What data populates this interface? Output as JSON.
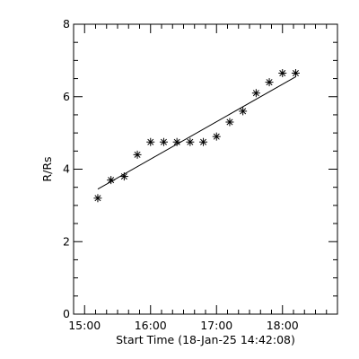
{
  "chart_data": {
    "type": "scatter",
    "xlabel": "Start Time (18-Jan-25 14:42:08)",
    "ylabel": "R/Rs",
    "xlim": [
      "14:50",
      "18:50"
    ],
    "ylim": [
      0,
      8
    ],
    "x_ticks": [
      "15:00",
      "16:00",
      "17:00",
      "18:00"
    ],
    "y_ticks": [
      "0",
      "2",
      "4",
      "6",
      "8"
    ],
    "marker": "asterisk",
    "points": [
      {
        "x": "15:12",
        "y": 3.2
      },
      {
        "x": "15:24",
        "y": 3.7
      },
      {
        "x": "15:36",
        "y": 3.8
      },
      {
        "x": "15:48",
        "y": 4.4
      },
      {
        "x": "16:00",
        "y": 4.75
      },
      {
        "x": "16:12",
        "y": 4.75
      },
      {
        "x": "16:24",
        "y": 4.75
      },
      {
        "x": "16:36",
        "y": 4.75
      },
      {
        "x": "16:48",
        "y": 4.75
      },
      {
        "x": "17:00",
        "y": 4.9
      },
      {
        "x": "17:12",
        "y": 5.3
      },
      {
        "x": "17:24",
        "y": 5.6
      },
      {
        "x": "17:36",
        "y": 6.1
      },
      {
        "x": "17:48",
        "y": 6.4
      },
      {
        "x": "18:00",
        "y": 6.65
      },
      {
        "x": "18:12",
        "y": 6.65
      }
    ],
    "fit_line": {
      "start": {
        "x": "15:12",
        "y": 3.45
      },
      "end": {
        "x": "18:12",
        "y": 6.55
      }
    },
    "grid": false,
    "legend": false
  }
}
